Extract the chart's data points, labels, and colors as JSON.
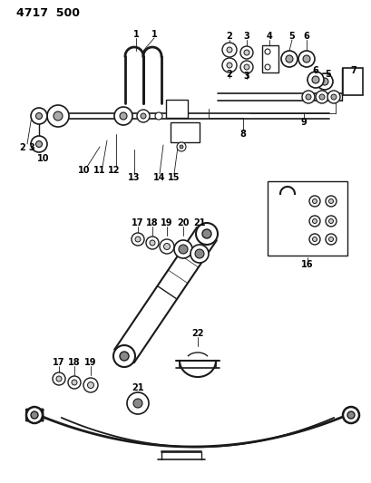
{
  "title": "4717  500",
  "bg_color": "#ffffff",
  "line_color": "#1a1a1a",
  "text_color": "#000000",
  "fig_width": 4.09,
  "fig_height": 5.33,
  "dpi": 100
}
